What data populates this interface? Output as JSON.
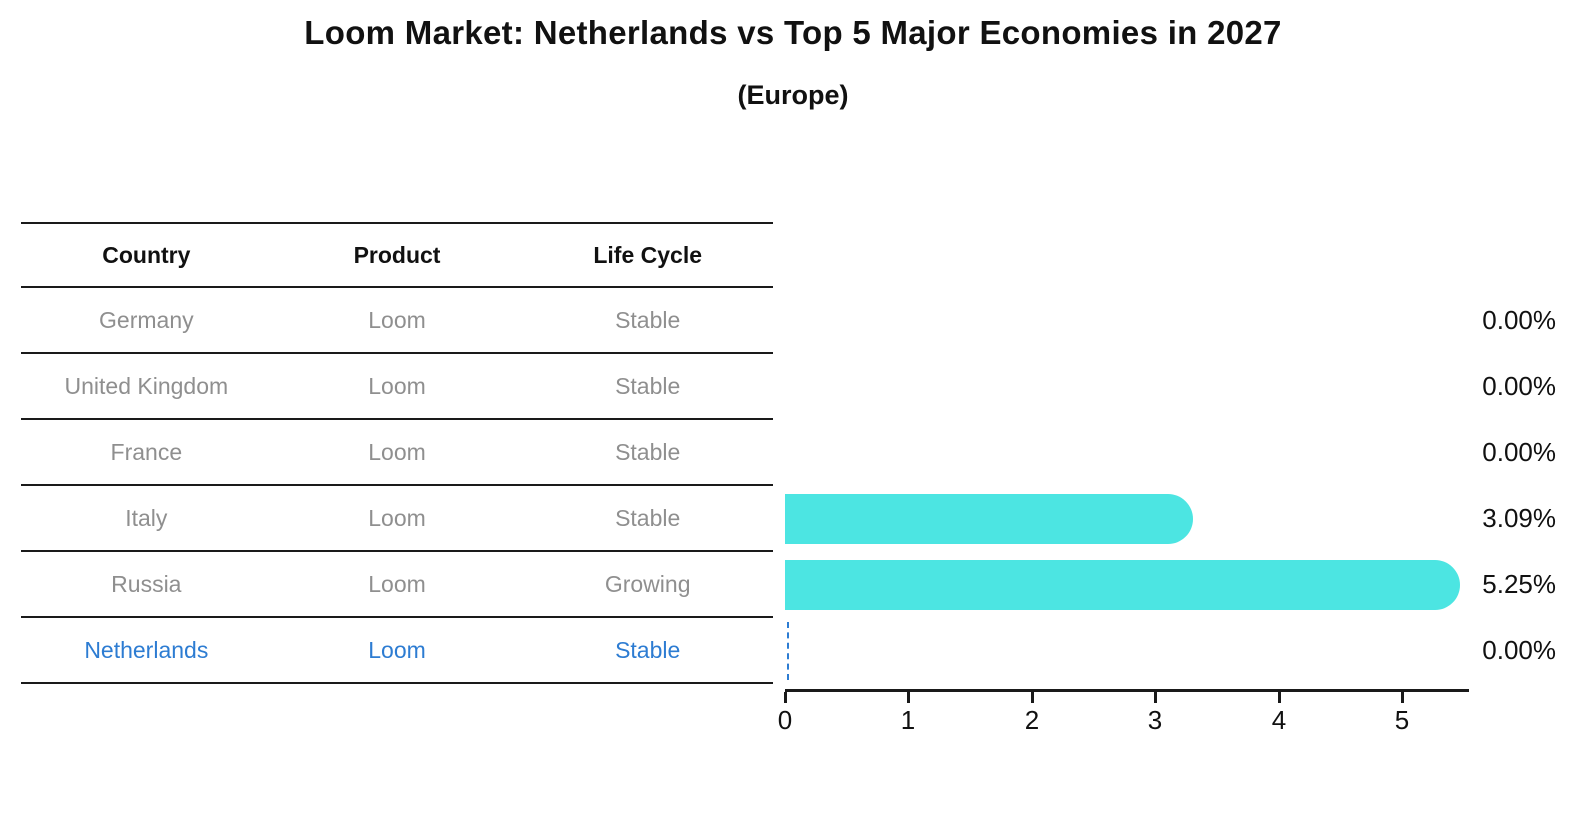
{
  "page": {
    "title": "Loom Market: Netherlands vs Top 5 Major Economies in 2027",
    "subtitle": "(Europe)",
    "background": "#ffffff"
  },
  "table": {
    "columns": [
      "Country",
      "Product",
      "Life Cycle"
    ],
    "rows": [
      {
        "country": "Germany",
        "product": "Loom",
        "life_cycle": "Stable",
        "highlight": false
      },
      {
        "country": "United Kingdom",
        "product": "Loom",
        "life_cycle": "Stable",
        "highlight": false
      },
      {
        "country": "France",
        "product": "Loom",
        "life_cycle": "Stable",
        "highlight": false
      },
      {
        "country": "Italy",
        "product": "Loom",
        "life_cycle": "Stable",
        "highlight": false
      },
      {
        "country": "Russia",
        "product": "Loom",
        "life_cycle": "Growing",
        "highlight": false
      },
      {
        "country": "Netherlands",
        "product": "Loom",
        "life_cycle": "Stable",
        "highlight": true
      }
    ]
  },
  "chart_data": {
    "type": "bar",
    "orientation": "horizontal",
    "title": "Loom Market: Netherlands vs Top 5 Major Economies in 2027",
    "subtitle": "(Europe)",
    "categories": [
      "Germany",
      "United Kingdom",
      "France",
      "Italy",
      "Russia",
      "Netherlands"
    ],
    "values": [
      0.0,
      0.0,
      0.0,
      3.09,
      5.25,
      0.0
    ],
    "value_labels": [
      "0.00%",
      "0.00%",
      "0.00%",
      "3.09%",
      "5.25%",
      "0.00%"
    ],
    "x_ticks": [
      "0",
      "1",
      "2",
      "3",
      "4",
      "5"
    ],
    "xlim": [
      0,
      5.5
    ],
    "xlabel": "",
    "ylabel": "",
    "grid": false,
    "legend": "none",
    "bar_color": "#4ce5e2",
    "highlight_color": "#2d7cd2",
    "highlight_index": 5,
    "highlight_marker": "dashed-zero-line"
  }
}
